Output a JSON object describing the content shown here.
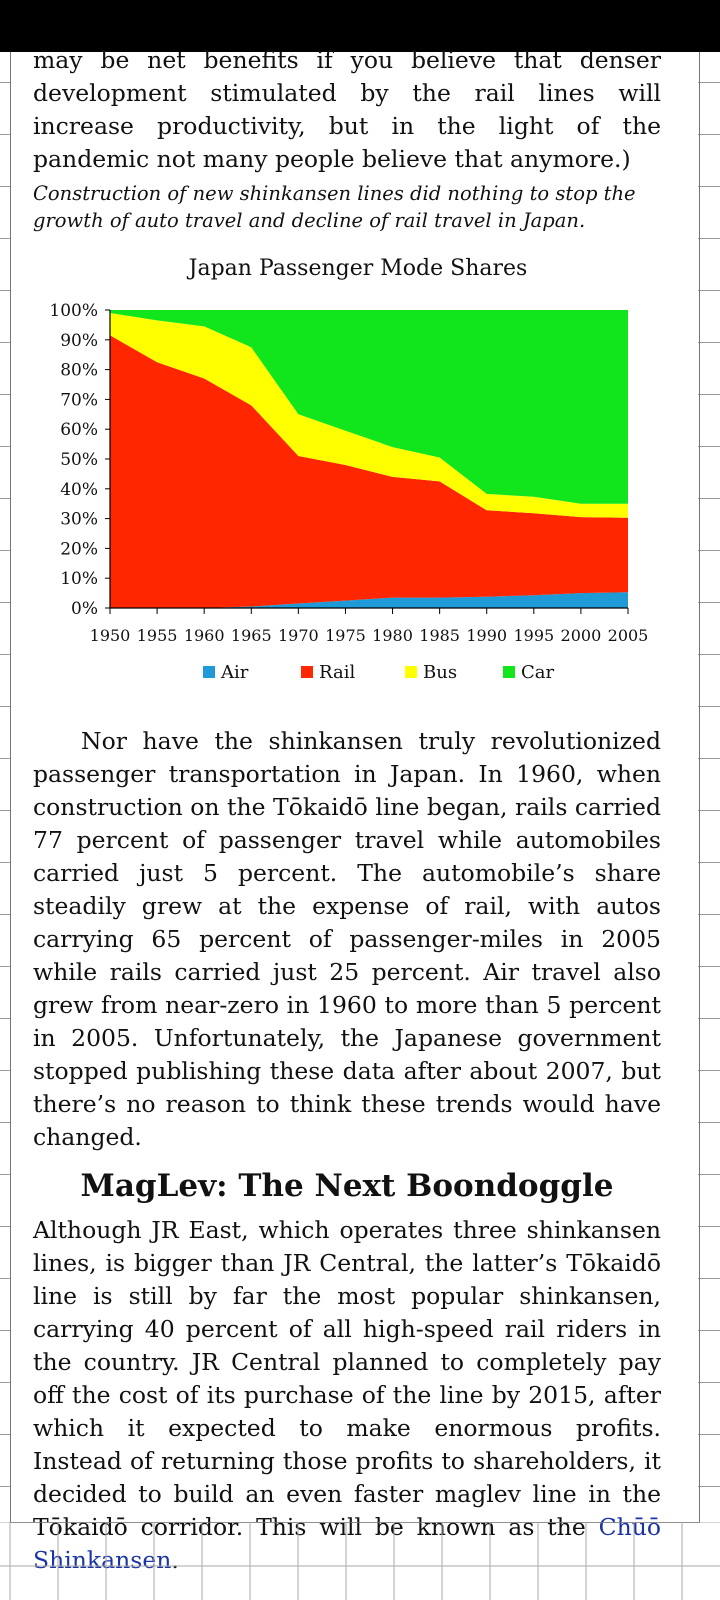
{
  "text": {
    "para_top": "may be net benefits if you believe that denser development stimulated by the rail lines will increase productivity, but in the light of the pandemic not many people believe that anymore.)",
    "caption": "Construction of new shinkansen lines did nothing to stop the growth of auto travel and decline of rail travel in Japan.",
    "para_middle": "Nor have the shinkansen truly revolutionized passenger transportation in Japan. In 1960, when construction on the Tōkaidō line began, rails carried 77 percent of passenger travel while automobiles carried just 5 percent. The automobile’s share steadily grew at the expense of rail, with autos carrying 65 percent of passenger-miles in 2005 while rails carried just 25 percent. Air travel also grew from near-zero in 1960 to more than 5 percent in 2005. Unfortunately, the Japanese government stopped publishing these data after about 2007, but there’s no reason to think these trends would have changed.",
    "heading": "MagLev: The Next Boondoggle",
    "para_bottom_lead": "Although JR East, which operates three shinkansen lines, is bigger than JR Central, the latter’s Tōkaidō line is still by far the most popular shinkansen, carrying 40 percent of all high-speed rail riders in the country. JR Central planned to completely pay off the cost of its purchase of the line by 2015, after which it expected to make enormous profits. Instead of returning those profits to shareholders, it decided to build an even faster maglev line in the Tōkaidō corridor. This will be known as the ",
    "link_text": "Chūō Shinkansen",
    "para_bottom_end": "."
  },
  "colors": {
    "air": "#1e9ad6",
    "rail": "#ff2600",
    "bus": "#ffff00",
    "car": "#11e51c",
    "link": "#1a33a5"
  },
  "chart_data": {
    "type": "area",
    "stacked": true,
    "title": "Japan Passenger Mode Shares",
    "x": [
      1950,
      1955,
      1960,
      1965,
      1970,
      1975,
      1980,
      1985,
      1990,
      1995,
      2000,
      2005
    ],
    "y_ticks": [
      "0%",
      "10%",
      "20%",
      "30%",
      "40%",
      "50%",
      "60%",
      "70%",
      "80%",
      "90%",
      "100%"
    ],
    "ylim": [
      0,
      100
    ],
    "legend_position": "bottom",
    "series": [
      {
        "name": "Air",
        "color": "#1e9ad6",
        "values": [
          0,
          0,
          0,
          0.5,
          1.5,
          2.5,
          3.5,
          3.5,
          3.8,
          4.3,
          5,
          5.3
        ]
      },
      {
        "name": "Rail",
        "color": "#ff2600",
        "values": [
          91.5,
          82.5,
          77,
          67.5,
          49.5,
          45.5,
          40.5,
          39,
          29,
          27.5,
          25.5,
          25
        ]
      },
      {
        "name": "Bus",
        "color": "#ffff00",
        "values": [
          7.5,
          14,
          17.5,
          19.5,
          14,
          11.5,
          10,
          8,
          5.5,
          5.5,
          4.5,
          4.7
        ]
      },
      {
        "name": "Car",
        "color": "#11e51c",
        "values": [
          1,
          3.5,
          5.5,
          12.5,
          35,
          40.5,
          46,
          49.5,
          61.7,
          62.7,
          65,
          65
        ]
      }
    ]
  }
}
